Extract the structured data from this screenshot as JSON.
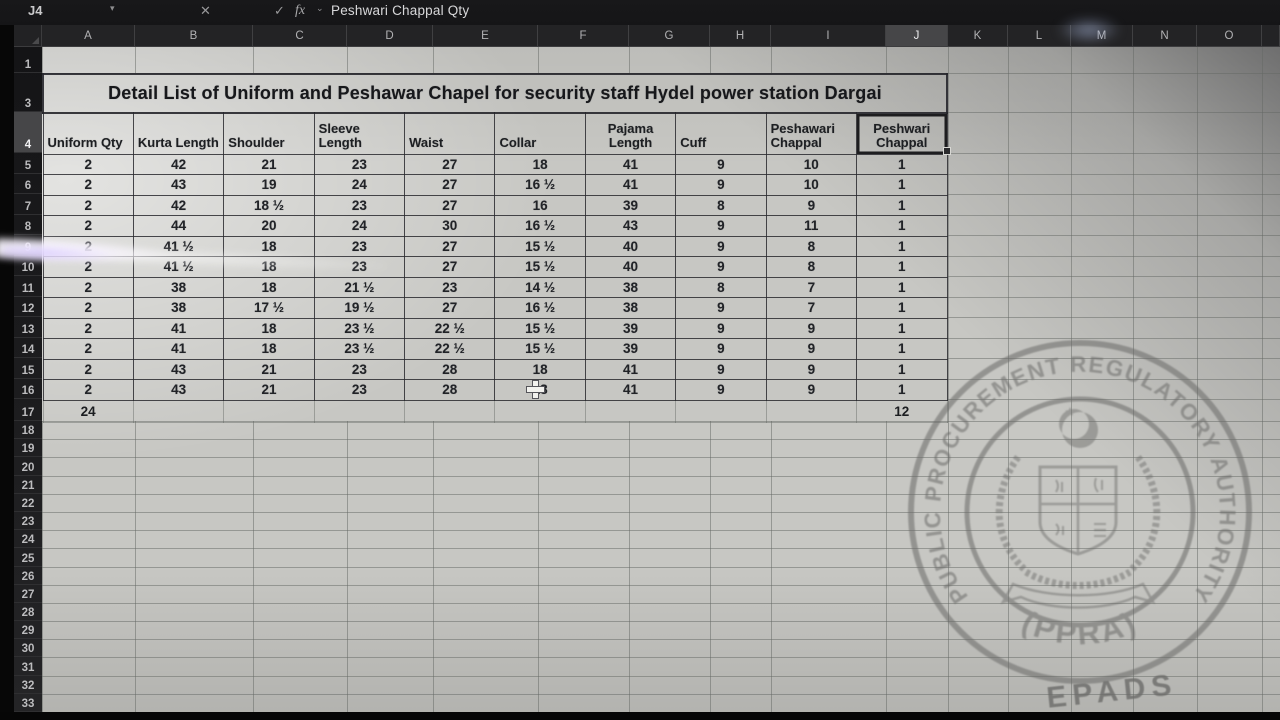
{
  "formula_bar": {
    "cell_reference": "J4",
    "name_caret": "▾",
    "cancel_label": "✕",
    "enter_label": "✓",
    "fx_label": "fx",
    "fx_caret": "⌄",
    "formula_text": "Peshwari Chappal Qty"
  },
  "column_letters": [
    "A",
    "B",
    "C",
    "D",
    "E",
    "F",
    "G",
    "H",
    "I",
    "J",
    "K",
    "L",
    "M",
    "N",
    "O"
  ],
  "selected_column": "J",
  "row_numbers": [
    "1",
    "3",
    "4",
    "5",
    "6",
    "7",
    "8",
    "9",
    "10",
    "11",
    "12",
    "13",
    "14",
    "15",
    "16",
    "17",
    "18",
    "19",
    "20",
    "21",
    "22",
    "23",
    "24",
    "25",
    "26",
    "27",
    "28",
    "29",
    "30",
    "31",
    "32",
    "33"
  ],
  "selected_row": "4",
  "sheet": {
    "title": "Detail List of Uniform and Peshawar Chapel for security staff Hydel power station Dargai"
  },
  "table": {
    "headers": [
      "Uniform Qty",
      "Kurta Length",
      "Shoulder",
      "Sleeve Length",
      "Waist",
      "Collar",
      "Pajama Length",
      "Cuff",
      "Peshawari Chappal",
      "Peshwari Chappal"
    ],
    "rows": [
      [
        "2",
        "42",
        "21",
        "23",
        "27",
        "18",
        "41",
        "9",
        "10",
        "1"
      ],
      [
        "2",
        "43",
        "19",
        "24",
        "27",
        "16 ½",
        "41",
        "9",
        "10",
        "1"
      ],
      [
        "2",
        "42",
        "18 ½",
        "23",
        "27",
        "16",
        "39",
        "8",
        "9",
        "1"
      ],
      [
        "2",
        "44",
        "20",
        "24",
        "30",
        "16 ½",
        "43",
        "9",
        "11",
        "1"
      ],
      [
        "2",
        "41 ½",
        "18",
        "23",
        "27",
        "15 ½",
        "40",
        "9",
        "8",
        "1"
      ],
      [
        "2",
        "41 ½",
        "18",
        "23",
        "27",
        "15 ½",
        "40",
        "9",
        "8",
        "1"
      ],
      [
        "2",
        "38",
        "18",
        "21 ½",
        "23",
        "14 ½",
        "38",
        "8",
        "7",
        "1"
      ],
      [
        "2",
        "38",
        "17 ½",
        "19 ½",
        "27",
        "16 ½",
        "38",
        "9",
        "7",
        "1"
      ],
      [
        "2",
        "41",
        "18",
        "23 ½",
        "22 ½",
        "15 ½",
        "39",
        "9",
        "9",
        "1"
      ],
      [
        "2",
        "41",
        "18",
        "23 ½",
        "22 ½",
        "15 ½",
        "39",
        "9",
        "9",
        "1"
      ],
      [
        "2",
        "43",
        "21",
        "23",
        "28",
        "18",
        "41",
        "9",
        "9",
        "1"
      ],
      [
        "2",
        "43",
        "21",
        "23",
        "28",
        "18",
        "41",
        "9",
        "9",
        "1"
      ]
    ],
    "totals": [
      "24",
      "",
      "",
      "",
      "",
      "",
      "",
      "",
      "",
      "12"
    ]
  },
  "watermark": {
    "arc_text": "PUBLIC PROCUREMENT REGULATORY AUTHORITY",
    "abbr_text": "(PPRA)",
    "footer_text": "EPADS"
  },
  "colors": {
    "chrome_dark": "#1b1b1d",
    "sheet_base": "#c7c7c3",
    "grid_line": "#646864",
    "table_border": "#2a2a2f",
    "watermark_ink": "#6e6e6c"
  }
}
